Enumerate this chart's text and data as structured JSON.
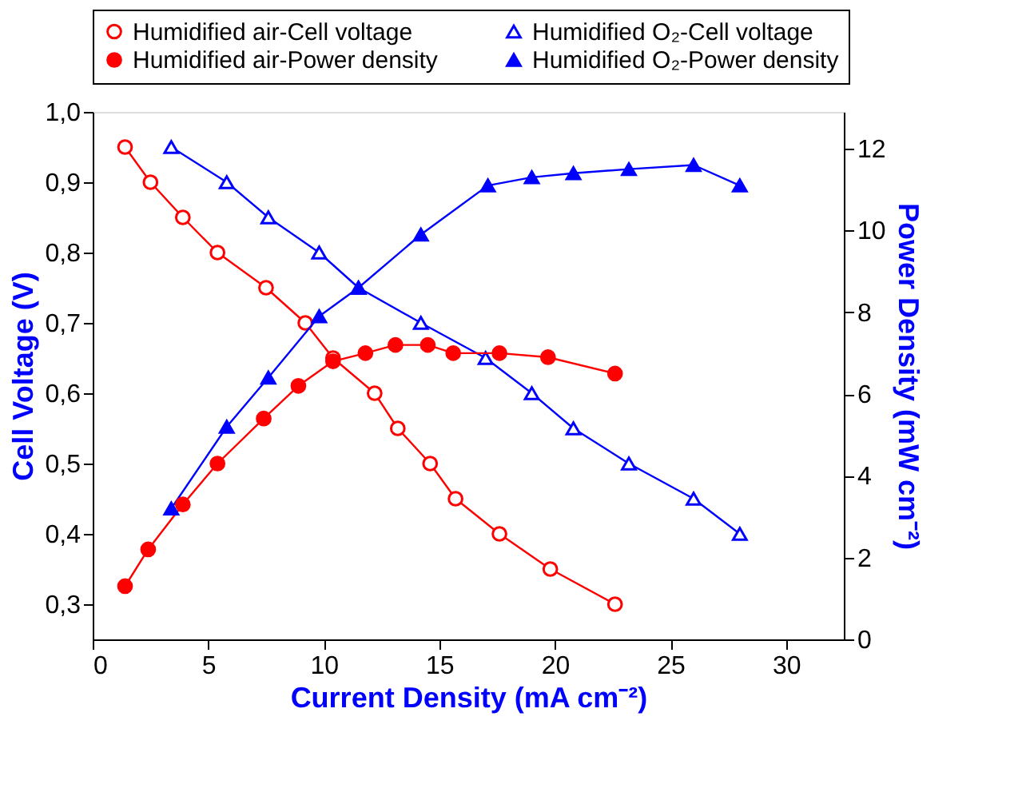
{
  "chart_data": {
    "type": "line",
    "xlabel": "Current Density (mA cm⁻²)",
    "ylabel": "Cell Voltage (V)",
    "y2label": "Power Density (mW cm⁻²)",
    "xlim": [
      0,
      32.5
    ],
    "xticks": [
      0,
      5,
      10,
      15,
      20,
      25,
      30
    ],
    "ylim": [
      0.25,
      1.0
    ],
    "yticks": [
      {
        "value": 0.3,
        "label": "0,3"
      },
      {
        "value": 0.4,
        "label": "0,4"
      },
      {
        "value": 0.5,
        "label": "0,5"
      },
      {
        "value": 0.6,
        "label": "0,6"
      },
      {
        "value": 0.7,
        "label": "0,7"
      },
      {
        "value": 0.8,
        "label": "0,8"
      },
      {
        "value": 0.9,
        "label": "0,9"
      },
      {
        "value": 1.0,
        "label": "1,0"
      }
    ],
    "y2lim": [
      0,
      12.9
    ],
    "y2ticks": [
      0,
      2,
      4,
      6,
      8,
      10,
      12
    ],
    "grid": false,
    "legend": "top",
    "series": [
      {
        "name": "Humidified air-Cell voltage",
        "color": "#ff0000",
        "marker": "circle",
        "x": [
          1.4,
          2.5,
          3.9,
          5.4,
          7.5,
          9.2,
          10.4,
          12.2,
          13.2,
          14.6,
          15.7,
          17.6,
          19.8,
          22.6
        ],
        "values": [
          0.95,
          0.9,
          0.85,
          0.8,
          0.75,
          0.7,
          0.65,
          0.6,
          0.55,
          0.5,
          0.45,
          0.4,
          0.35,
          0.3
        ]
      },
      {
        "name": "Humidified O₂-Cell voltage",
        "color": "#0000ff",
        "marker": "triangle",
        "x": [
          3.4,
          5.8,
          7.6,
          9.8,
          11.5,
          14.2,
          17.0,
          19.0,
          20.8,
          23.2,
          26.0,
          28.0
        ],
        "values": [
          0.95,
          0.9,
          0.85,
          0.8,
          0.75,
          0.7,
          0.65,
          0.6,
          0.55,
          0.5,
          0.45,
          0.4
        ]
      },
      {
        "name": "Humidified air-Power density",
        "color": "#ff0000",
        "marker": "circle",
        "axis": "y2",
        "x": [
          1.4,
          2.4,
          3.9,
          5.4,
          7.4,
          8.9,
          10.4,
          11.8,
          13.1,
          14.5,
          15.6,
          17.6,
          19.7,
          22.6
        ],
        "values": [
          1.3,
          2.2,
          3.3,
          4.3,
          5.4,
          6.2,
          6.8,
          7.0,
          7.2,
          7.2,
          7.0,
          7.0,
          6.9,
          6.5
        ]
      },
      {
        "name": "Humidified O₂-Power density",
        "color": "#0000ff",
        "marker": "triangle",
        "axis": "y2",
        "x": [
          3.4,
          5.8,
          7.6,
          9.8,
          11.5,
          14.2,
          17.1,
          19.0,
          20.8,
          23.2,
          26.0,
          28.0
        ],
        "values": [
          3.2,
          5.2,
          6.4,
          7.9,
          8.6,
          9.9,
          11.1,
          11.3,
          11.4,
          11.5,
          11.6,
          11.1
        ]
      }
    ]
  }
}
